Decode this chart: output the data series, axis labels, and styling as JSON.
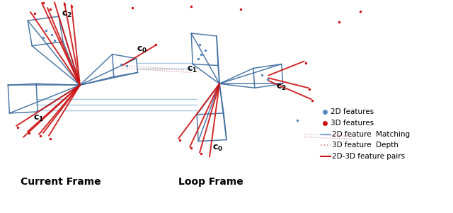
{
  "bg_color": "#ffffff",
  "camera_color": "#3d6b9e",
  "camera_lw": 1.1,
  "match_color": "#7ab0d4",
  "match_lw": 1.0,
  "depth_color": "#e08080",
  "depth_lw": 0.9,
  "pair_color": "#cc1111",
  "pair_lw": 1.4,
  "feature_2d_color": "#5588bb",
  "feature_3d_color": "#cc1111",
  "current_frame_label": "Current Frame",
  "loop_frame_label": "Loop Frame",
  "legend_items": [
    {
      "label": "2D features",
      "color": "#5588bb",
      "type": "dot"
    },
    {
      "label": "3D features",
      "color": "#cc1111",
      "type": "dot"
    },
    {
      "label": "2D feature  Matching",
      "color": "#7ab0d4",
      "type": "line"
    },
    {
      "label": "3D feature  Depth",
      "color": "#e08080",
      "type": "dashed"
    },
    {
      "label": "2D-3D feature pairs",
      "color": "#cc1111",
      "type": "solid"
    }
  ]
}
